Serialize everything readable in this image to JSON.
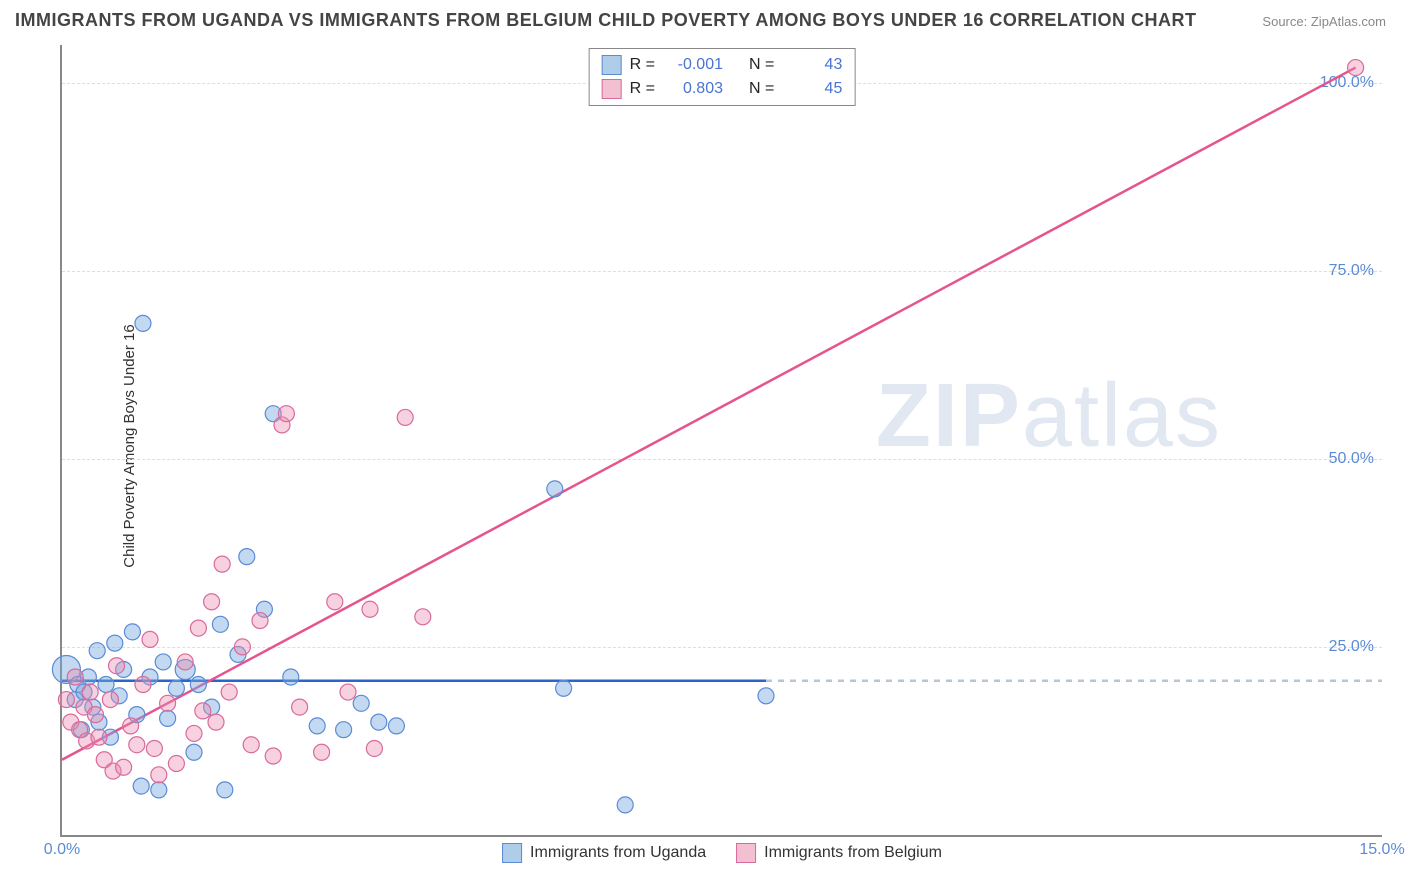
{
  "title": "IMMIGRANTS FROM UGANDA VS IMMIGRANTS FROM BELGIUM CHILD POVERTY AMONG BOYS UNDER 16 CORRELATION CHART",
  "source_label": "Source:",
  "source_value": "ZipAtlas.com",
  "y_axis_label": "Child Poverty Among Boys Under 16",
  "watermark": "ZIPatlas",
  "chart": {
    "type": "scatter",
    "xlim": [
      0.0,
      15.0
    ],
    "ylim": [
      0.0,
      105.0
    ],
    "x_ticks": [
      {
        "value": 0.0,
        "label": "0.0%"
      },
      {
        "value": 15.0,
        "label": "15.0%"
      }
    ],
    "y_ticks": [
      {
        "value": 25.0,
        "label": "25.0%"
      },
      {
        "value": 50.0,
        "label": "50.0%"
      },
      {
        "value": 75.0,
        "label": "75.0%"
      },
      {
        "value": 100.0,
        "label": "100.0%"
      }
    ],
    "grid_color": "#d8e0e5",
    "background_color": "#ffffff",
    "series": [
      {
        "name": "Immigrants from Uganda",
        "color_fill": "rgba(120,170,225,0.45)",
        "color_stroke": "#5b8bd4",
        "swatch_fill": "#aecde8",
        "swatch_border": "#5b8bd4",
        "marker_radius": 8,
        "trend": {
          "x1": 0.0,
          "y1": 20.5,
          "x2": 8.0,
          "y2": 20.5,
          "extrapolate_to_x": 15.0,
          "solid_color": "#2a66c9",
          "dash_color": "#b7c7d6",
          "width": 2.5
        },
        "R": "-0.001",
        "N": "43",
        "points": [
          {
            "x": 0.05,
            "y": 22.0,
            "r": 14
          },
          {
            "x": 0.15,
            "y": 18.0
          },
          {
            "x": 0.18,
            "y": 20.0
          },
          {
            "x": 0.22,
            "y": 14.0
          },
          {
            "x": 0.25,
            "y": 19.0
          },
          {
            "x": 0.3,
            "y": 21.0
          },
          {
            "x": 0.35,
            "y": 17.0
          },
          {
            "x": 0.4,
            "y": 24.5
          },
          {
            "x": 0.42,
            "y": 15.0
          },
          {
            "x": 0.5,
            "y": 20.0
          },
          {
            "x": 0.55,
            "y": 13.0
          },
          {
            "x": 0.6,
            "y": 25.5
          },
          {
            "x": 0.65,
            "y": 18.5
          },
          {
            "x": 0.7,
            "y": 22.0
          },
          {
            "x": 0.8,
            "y": 27.0
          },
          {
            "x": 0.85,
            "y": 16.0
          },
          {
            "x": 0.9,
            "y": 6.5
          },
          {
            "x": 0.92,
            "y": 68.0
          },
          {
            "x": 1.0,
            "y": 21.0
          },
          {
            "x": 1.1,
            "y": 6.0
          },
          {
            "x": 1.15,
            "y": 23.0
          },
          {
            "x": 1.2,
            "y": 15.5
          },
          {
            "x": 1.3,
            "y": 19.5
          },
          {
            "x": 1.4,
            "y": 22.0,
            "r": 10
          },
          {
            "x": 1.5,
            "y": 11.0
          },
          {
            "x": 1.55,
            "y": 20.0
          },
          {
            "x": 1.7,
            "y": 17.0
          },
          {
            "x": 1.8,
            "y": 28.0
          },
          {
            "x": 1.85,
            "y": 6.0
          },
          {
            "x": 2.0,
            "y": 24.0
          },
          {
            "x": 2.1,
            "y": 37.0
          },
          {
            "x": 2.3,
            "y": 30.0
          },
          {
            "x": 2.4,
            "y": 56.0
          },
          {
            "x": 2.6,
            "y": 21.0
          },
          {
            "x": 2.9,
            "y": 14.5
          },
          {
            "x": 3.2,
            "y": 14.0
          },
          {
            "x": 3.4,
            "y": 17.5
          },
          {
            "x": 3.6,
            "y": 15.0
          },
          {
            "x": 3.8,
            "y": 14.5
          },
          {
            "x": 5.6,
            "y": 46.0
          },
          {
            "x": 5.7,
            "y": 19.5
          },
          {
            "x": 6.4,
            "y": 4.0
          },
          {
            "x": 8.0,
            "y": 18.5
          }
        ]
      },
      {
        "name": "Immigrants from Belgium",
        "color_fill": "rgba(235,140,175,0.40)",
        "color_stroke": "#d96a9c",
        "swatch_fill": "#f3c0d2",
        "swatch_border": "#d96a9c",
        "marker_radius": 8,
        "trend": {
          "x1": 0.0,
          "y1": 10.0,
          "x2": 14.7,
          "y2": 102.0,
          "solid_color": "#e6548e",
          "width": 2.5
        },
        "R": "0.803",
        "N": "45",
        "points": [
          {
            "x": 0.05,
            "y": 18.0
          },
          {
            "x": 0.1,
            "y": 15.0
          },
          {
            "x": 0.15,
            "y": 21.0
          },
          {
            "x": 0.2,
            "y": 14.0
          },
          {
            "x": 0.25,
            "y": 17.0
          },
          {
            "x": 0.28,
            "y": 12.5
          },
          {
            "x": 0.32,
            "y": 19.0
          },
          {
            "x": 0.38,
            "y": 16.0
          },
          {
            "x": 0.42,
            "y": 13.0
          },
          {
            "x": 0.48,
            "y": 10.0
          },
          {
            "x": 0.55,
            "y": 18.0
          },
          {
            "x": 0.58,
            "y": 8.5
          },
          {
            "x": 0.62,
            "y": 22.5
          },
          {
            "x": 0.7,
            "y": 9.0
          },
          {
            "x": 0.78,
            "y": 14.5
          },
          {
            "x": 0.85,
            "y": 12.0
          },
          {
            "x": 0.92,
            "y": 20.0
          },
          {
            "x": 1.0,
            "y": 26.0
          },
          {
            "x": 1.05,
            "y": 11.5
          },
          {
            "x": 1.1,
            "y": 8.0
          },
          {
            "x": 1.2,
            "y": 17.5
          },
          {
            "x": 1.3,
            "y": 9.5
          },
          {
            "x": 1.4,
            "y": 23.0
          },
          {
            "x": 1.5,
            "y": 13.5
          },
          {
            "x": 1.55,
            "y": 27.5
          },
          {
            "x": 1.6,
            "y": 16.5
          },
          {
            "x": 1.7,
            "y": 31.0
          },
          {
            "x": 1.75,
            "y": 15.0
          },
          {
            "x": 1.82,
            "y": 36.0
          },
          {
            "x": 1.9,
            "y": 19.0
          },
          {
            "x": 2.05,
            "y": 25.0
          },
          {
            "x": 2.15,
            "y": 12.0
          },
          {
            "x": 2.25,
            "y": 28.5
          },
          {
            "x": 2.4,
            "y": 10.5
          },
          {
            "x": 2.5,
            "y": 54.5
          },
          {
            "x": 2.55,
            "y": 56.0
          },
          {
            "x": 2.7,
            "y": 17.0
          },
          {
            "x": 2.95,
            "y": 11.0
          },
          {
            "x": 3.1,
            "y": 31.0
          },
          {
            "x": 3.25,
            "y": 19.0
          },
          {
            "x": 3.5,
            "y": 30.0
          },
          {
            "x": 3.55,
            "y": 11.5
          },
          {
            "x": 3.9,
            "y": 55.5
          },
          {
            "x": 4.1,
            "y": 29.0
          },
          {
            "x": 14.7,
            "y": 102.0
          }
        ]
      }
    ],
    "legend_bottom": [
      {
        "series": 0
      },
      {
        "series": 1
      }
    ],
    "legend_top_labels": {
      "r": "R =",
      "n": "N ="
    }
  }
}
